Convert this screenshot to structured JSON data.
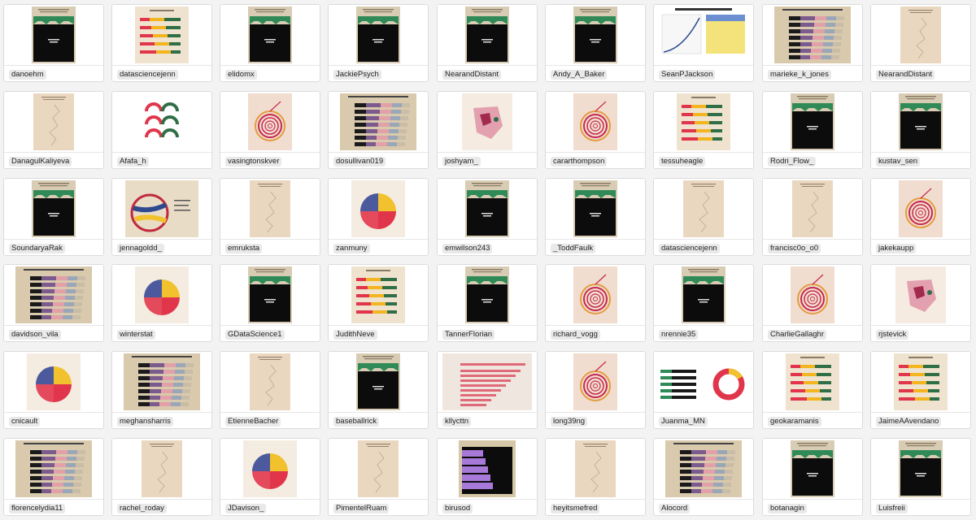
{
  "cards": [
    {
      "user": "danoehm",
      "style": "slaves-dark"
    },
    {
      "user": "datasciencejenn",
      "style": "stacked-bars"
    },
    {
      "user": "elidomx",
      "style": "slaves-dark"
    },
    {
      "user": "JackiePsych",
      "style": "slaves-dark"
    },
    {
      "user": "NearandDistant",
      "style": "slaves-dark"
    },
    {
      "user": "Andy_A_Baker",
      "style": "slaves-dark"
    },
    {
      "user": "SeanPJackson",
      "style": "tidy-line"
    },
    {
      "user": "marieke_k_jones",
      "style": "purple-bars"
    },
    {
      "user": "NearandDistant",
      "style": "line-plot"
    },
    {
      "user": "DanagulKaliyeva",
      "style": "line-plot"
    },
    {
      "user": "Afafa_h",
      "style": "gauges"
    },
    {
      "user": "vasingtonskver",
      "style": "spiral"
    },
    {
      "user": "dosullivan019",
      "style": "purple-bars"
    },
    {
      "user": "joshyam_",
      "style": "map-pink"
    },
    {
      "user": "cararthompson",
      "style": "spiral"
    },
    {
      "user": "tessuheagle",
      "style": "stacked-bars"
    },
    {
      "user": "Rodri_Flow_",
      "style": "slaves-dark"
    },
    {
      "user": "kustav_sen",
      "style": "slaves-dark"
    },
    {
      "user": "SoundaryaRak",
      "style": "slaves-dark"
    },
    {
      "user": "jennagoldd_",
      "style": "chord"
    },
    {
      "user": "emruksta",
      "style": "line-plot"
    },
    {
      "user": "zanmuny",
      "style": "pie"
    },
    {
      "user": "emwilson243",
      "style": "slaves-dark"
    },
    {
      "user": "_ToddFaulk",
      "style": "slaves-dark"
    },
    {
      "user": "datasciencejenn",
      "style": "line-plot"
    },
    {
      "user": "francisc0o_o0",
      "style": "line-plot"
    },
    {
      "user": "jakekaupp",
      "style": "spiral"
    },
    {
      "user": "davidson_vila",
      "style": "purple-bars"
    },
    {
      "user": "winterstat",
      "style": "pie"
    },
    {
      "user": "GDataScience1",
      "style": "slaves-dark"
    },
    {
      "user": "JudithNeve",
      "style": "stacked-bars"
    },
    {
      "user": "TannerFlorian",
      "style": "slaves-dark"
    },
    {
      "user": "richard_vogg",
      "style": "spiral"
    },
    {
      "user": "nrennie35",
      "style": "slaves-dark"
    },
    {
      "user": "CharlieGallaghr",
      "style": "spiral"
    },
    {
      "user": "rjstevick",
      "style": "map-pink"
    },
    {
      "user": "cnicault",
      "style": "pie"
    },
    {
      "user": "meghansharris",
      "style": "purple-bars"
    },
    {
      "user": "EtienneBacher",
      "style": "line-plot"
    },
    {
      "user": "baseballrick",
      "style": "slaves-dark"
    },
    {
      "user": "kllycttn",
      "style": "pink-bars"
    },
    {
      "user": "long39ng",
      "style": "spiral"
    },
    {
      "user": "Juanma_MN",
      "style": "donut"
    },
    {
      "user": "geokaramanis",
      "style": "stacked-bars"
    },
    {
      "user": "JaimeAAvendano",
      "style": "stacked-bars"
    },
    {
      "user": "florencelydia11",
      "style": "purple-bars"
    },
    {
      "user": "rachel_roday",
      "style": "line-plot"
    },
    {
      "user": "JDavison_",
      "style": "pie"
    },
    {
      "user": "PimentelRuam",
      "style": "line-plot"
    },
    {
      "user": "birusod",
      "style": "purple-block"
    },
    {
      "user": "heyitsmefred",
      "style": "line-plot"
    },
    {
      "user": "Alocord",
      "style": "purple-bars"
    },
    {
      "user": "botanagin",
      "style": "slaves-dark"
    },
    {
      "user": "Luisfreii",
      "style": "slaves-dark"
    }
  ]
}
